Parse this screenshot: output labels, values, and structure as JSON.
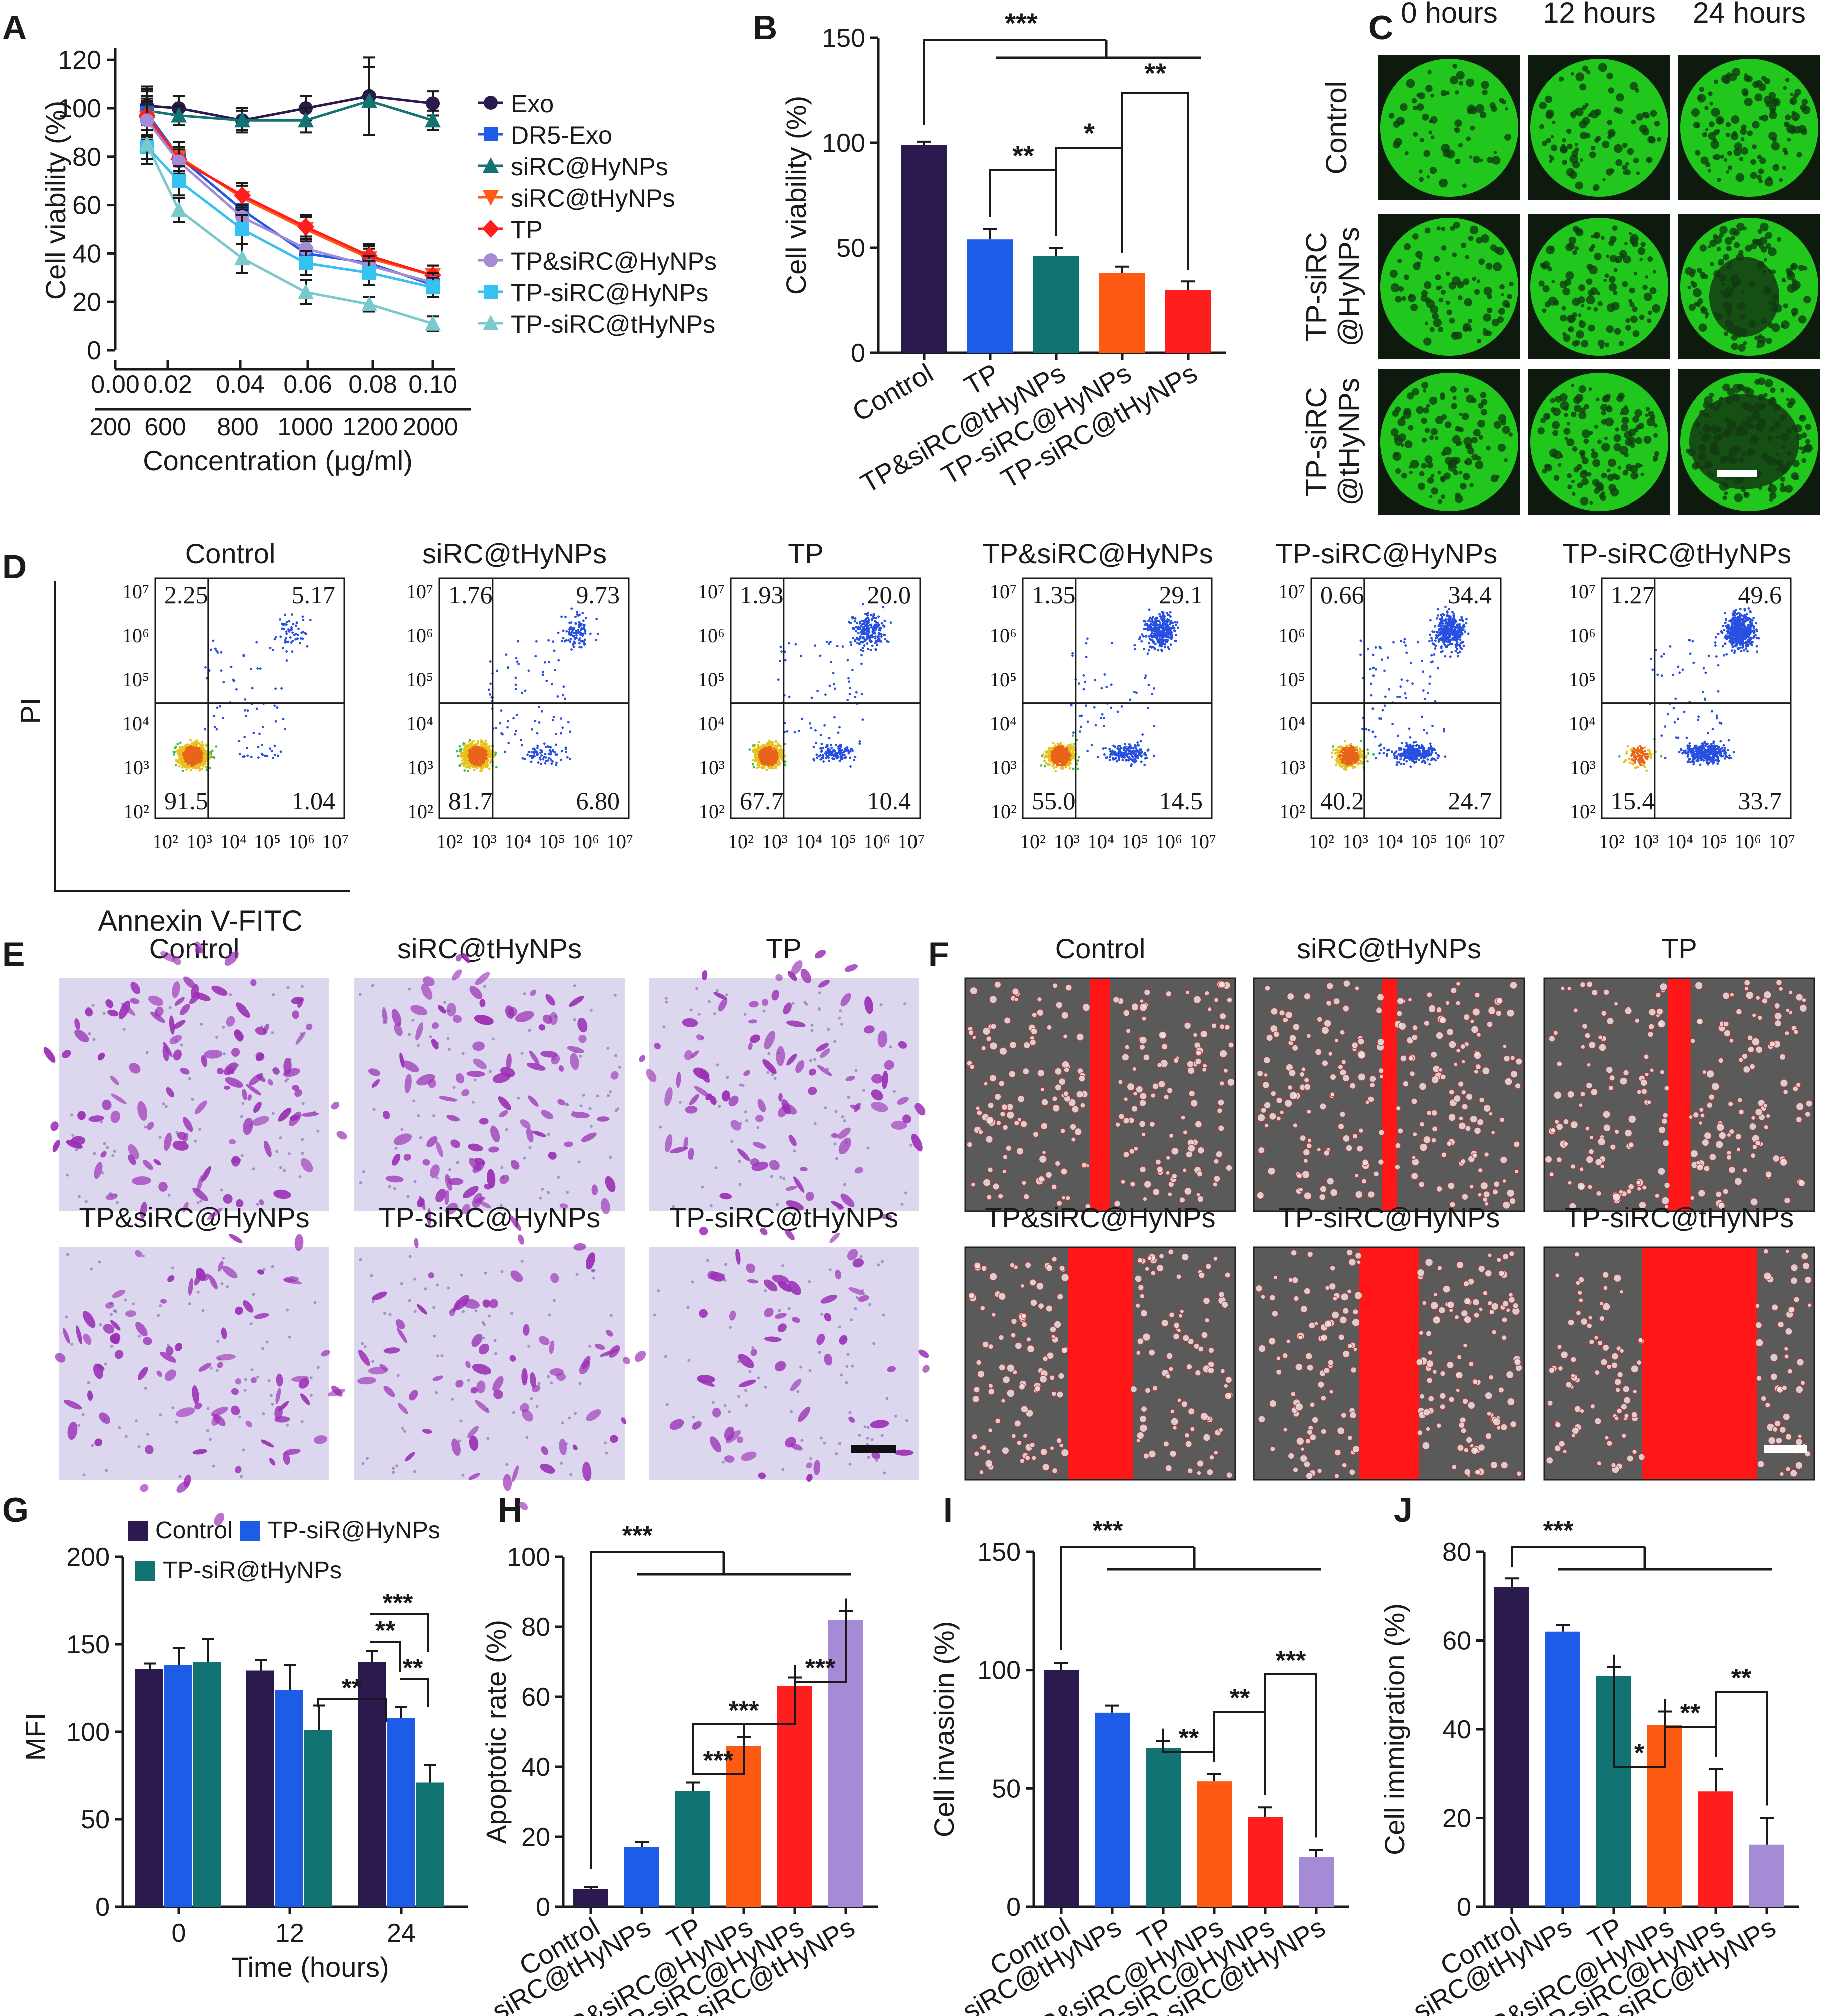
{
  "figure": {
    "panel_letters": [
      "A",
      "B",
      "C",
      "D",
      "E",
      "F",
      "G",
      "H",
      "I",
      "J"
    ]
  },
  "colors": {
    "dark_purple": "#2b1a4d",
    "blue": "#1e5ce8",
    "teal": "#127373",
    "orange": "#ff5a14",
    "red": "#ff1e1e",
    "lavender": "#a58ad6",
    "light_blue": "#35c2f0",
    "light_teal": "#7ac9cc",
    "green_fluor": "#22c71e",
    "purple_stain": "#9b2fb5",
    "scratch_red": "#ff1616"
  },
  "chart_data": [
    {
      "panel": "A",
      "type": "line",
      "ylabel": "Cell viability (%)",
      "xlabel": "Concentration (μg/ml)",
      "x_ticks_top": [
        "0.00",
        "0.02",
        "0.04",
        "0.06",
        "0.08",
        "0.10"
      ],
      "x_ticks_bottom": [
        "200",
        "600",
        "800",
        "1000",
        "1200",
        "2000"
      ],
      "y_ticks": [
        "0",
        "20",
        "40",
        "60",
        "80",
        "100",
        "120"
      ],
      "ylim": [
        0,
        125
      ],
      "x": [
        0.01,
        0.02,
        0.04,
        0.06,
        0.08,
        0.1
      ],
      "series": [
        {
          "name": "Exo",
          "marker": "circle",
          "color": "#2b1a4d",
          "values": [
            101,
            100,
            95,
            100,
            105,
            102
          ],
          "errors": [
            8,
            5,
            5,
            5,
            16,
            5
          ]
        },
        {
          "name": "DR5-Exo",
          "marker": "square",
          "color": "#1e5ce8",
          "values": [
            98,
            80,
            58,
            40,
            36,
            27
          ],
          "errors": [
            10,
            6,
            6,
            6,
            6,
            5
          ]
        },
        {
          "name": "siRC@HyNPs",
          "marker": "triangle-up",
          "color": "#127373",
          "values": [
            99,
            97,
            95,
            95,
            103,
            95
          ],
          "errors": [
            8,
            4,
            4,
            5,
            14,
            4
          ]
        },
        {
          "name": "siRC@tHyNPs",
          "marker": "triangle-down",
          "color": "#ff5a14",
          "values": [
            96,
            80,
            63,
            50,
            38,
            31
          ],
          "errors": [
            8,
            6,
            5,
            5,
            5,
            4
          ]
        },
        {
          "name": "TP",
          "marker": "diamond",
          "color": "#ff1e1e",
          "values": [
            97,
            79,
            64,
            51,
            39,
            31
          ],
          "errors": [
            8,
            5,
            5,
            5,
            5,
            4
          ]
        },
        {
          "name": "TP&siRC@HyNPs",
          "marker": "circle",
          "color": "#a58ad6",
          "values": [
            95,
            78,
            55,
            42,
            35,
            28
          ],
          "errors": [
            8,
            5,
            5,
            5,
            4,
            4
          ]
        },
        {
          "name": "TP-siRC@HyNPs",
          "marker": "square",
          "color": "#35c2f0",
          "values": [
            84,
            70,
            50,
            36,
            32,
            26
          ],
          "errors": [
            7,
            6,
            6,
            5,
            5,
            4
          ]
        },
        {
          "name": "TP-siRC@tHyNPs",
          "marker": "triangle-up",
          "color": "#7ac9cc",
          "values": [
            85,
            58,
            38,
            24,
            19,
            11
          ],
          "errors": [
            6,
            5,
            6,
            5,
            3,
            3
          ]
        }
      ]
    },
    {
      "panel": "B",
      "type": "bar",
      "ylabel": "Cell viability (%)",
      "ylim": [
        0,
        150
      ],
      "y_ticks": [
        "0",
        "50",
        "100",
        "150"
      ],
      "categories": [
        "Control",
        "TP",
        "TP&siRC@tHyNPs",
        "TP-siRC@HyNPs",
        "TP-siRC@tHyNPs"
      ],
      "values": [
        99,
        54,
        46,
        38,
        30
      ],
      "errors": [
        1.5,
        5,
        4,
        3,
        4
      ],
      "colors": [
        "#2b1a4d",
        "#1e5ce8",
        "#127373",
        "#ff5a14",
        "#ff1e1e"
      ],
      "significance": [
        {
          "label": "***",
          "type": "group",
          "from": 0,
          "to": [
            1,
            4
          ]
        },
        {
          "label": "**",
          "from": 1,
          "to": 2
        },
        {
          "label": "*",
          "from": 2,
          "to": 3
        },
        {
          "label": "**",
          "from": 3,
          "to": 4
        }
      ]
    },
    {
      "panel": "D",
      "type": "scatter",
      "xlabel": "Annexin V-FITC",
      "ylabel": "PI",
      "axis_ticks": [
        "10²",
        "10³",
        "10⁴",
        "10⁵",
        "10⁶",
        "10⁷"
      ],
      "plots": [
        {
          "title": "Control",
          "quadrants": {
            "ul": "2.25",
            "ur": "5.17",
            "ll": "91.5",
            "lr": "1.04"
          }
        },
        {
          "title": "siRC@tHyNPs",
          "quadrants": {
            "ul": "1.76",
            "ur": "9.73",
            "ll": "81.7",
            "lr": "6.80"
          }
        },
        {
          "title": "TP",
          "quadrants": {
            "ul": "1.93",
            "ur": "20.0",
            "ll": "67.7",
            "lr": "10.4"
          }
        },
        {
          "title": "TP&siRC@HyNPs",
          "quadrants": {
            "ul": "1.35",
            "ur": "29.1",
            "ll": "55.0",
            "lr": "14.5"
          }
        },
        {
          "title": "TP-siRC@HyNPs",
          "quadrants": {
            "ul": "0.66",
            "ur": "34.4",
            "ll": "40.2",
            "lr": "24.7"
          }
        },
        {
          "title": "TP-siRC@tHyNPs",
          "quadrants": {
            "ul": "1.27",
            "ur": "49.6",
            "ll": "15.4",
            "lr": "33.7"
          }
        }
      ]
    },
    {
      "panel": "G",
      "type": "bar",
      "ylabel": "MFI",
      "xlabel": "Time (hours)",
      "ylim": [
        0,
        200
      ],
      "y_ticks": [
        "0",
        "50",
        "100",
        "150",
        "200"
      ],
      "categories": [
        "0",
        "12",
        "24"
      ],
      "series": [
        {
          "name": "Control",
          "color": "#2b1a4d",
          "values": [
            136,
            135,
            140
          ],
          "errors": [
            3,
            6,
            6
          ]
        },
        {
          "name": "TP-siR@HyNPs",
          "color": "#1e5ce8",
          "values": [
            138,
            124,
            108
          ],
          "errors": [
            10,
            14,
            6
          ]
        },
        {
          "name": "TP-siR@tHyNPs",
          "color": "#127373",
          "values": [
            140,
            101,
            71
          ],
          "errors": [
            13,
            14,
            10
          ]
        }
      ],
      "significance": [
        "**",
        "***",
        "**",
        "**"
      ]
    },
    {
      "panel": "H",
      "type": "bar",
      "ylabel": "Apoptotic rate (%)",
      "ylim": [
        0,
        100
      ],
      "y_ticks": [
        "0",
        "20",
        "40",
        "60",
        "80",
        "100"
      ],
      "categories": [
        "Control",
        "siRC@tHyNPs",
        "TP",
        "TP&siRC@HyNPs",
        "TP-siRC@HyNPs",
        "TP-siRC@tHyNPs"
      ],
      "values": [
        5,
        17,
        33,
        46,
        63,
        82
      ],
      "errors": [
        0.6,
        1.5,
        2.5,
        2.5,
        2.5,
        2.5
      ],
      "colors": [
        "#2b1a4d",
        "#1e5ce8",
        "#127373",
        "#ff5a14",
        "#ff1e1e",
        "#a58ad6"
      ],
      "significance": [
        "***",
        "***",
        "***",
        "***"
      ]
    },
    {
      "panel": "I",
      "type": "bar",
      "ylabel": "Cell invasioin (%)",
      "ylim": [
        0,
        150
      ],
      "y_ticks": [
        "0",
        "50",
        "100",
        "150"
      ],
      "categories": [
        "Control",
        "siRC@tHyNPs",
        "TP",
        "TP&siRC@HyNPs",
        "TP-siRC@HyNPs",
        "TP-siRC@tHyNPs"
      ],
      "values": [
        100,
        82,
        67,
        53,
        38,
        21
      ],
      "errors": [
        3,
        3,
        3,
        3,
        4,
        3
      ],
      "colors": [
        "#2b1a4d",
        "#1e5ce8",
        "#127373",
        "#ff5a14",
        "#ff1e1e",
        "#a58ad6"
      ],
      "significance": [
        "***",
        "**",
        "**",
        "***"
      ]
    },
    {
      "panel": "J",
      "type": "bar",
      "ylabel": "Cell immigration (%)",
      "ylim": [
        0,
        80
      ],
      "y_ticks": [
        "0",
        "20",
        "40",
        "60",
        "80"
      ],
      "categories": [
        "Control",
        "siRC@tHyNPs",
        "TP",
        "TP&siRC@HyNPs",
        "TP-siRC@HyNPs",
        "TP-siRC@tHyNPs"
      ],
      "values": [
        72,
        62,
        52,
        41,
        26,
        14
      ],
      "errors": [
        2,
        1.5,
        2,
        3,
        5,
        6
      ],
      "colors": [
        "#2b1a4d",
        "#1e5ce8",
        "#127373",
        "#ff5a14",
        "#ff1e1e",
        "#a58ad6"
      ],
      "significance": [
        "***",
        "*",
        "**",
        "**"
      ]
    }
  ],
  "panel_C": {
    "column_titles": [
      "0 hours",
      "12 hours",
      "24 hours"
    ],
    "row_labels": [
      {
        "line1": "Control",
        "line2": ""
      },
      {
        "line1": "TP-siRC",
        "line2": "@HyNPs"
      },
      {
        "line1": "TP-siRC",
        "line2": "@tHyNPs"
      }
    ]
  },
  "panel_E": {
    "titles": [
      "Control",
      "siRC@tHyNPs",
      "TP",
      "TP&siRC@HyNPs",
      "TP-siRC@HyNPs",
      "TP-siRC@tHyNPs"
    ]
  },
  "panel_F": {
    "titles": [
      "Control",
      "siRC@tHyNPs",
      "TP",
      "TP&siRC@HyNPs",
      "TP-siRC@HyNPs",
      "TP-siRC@tHyNPs"
    ]
  }
}
